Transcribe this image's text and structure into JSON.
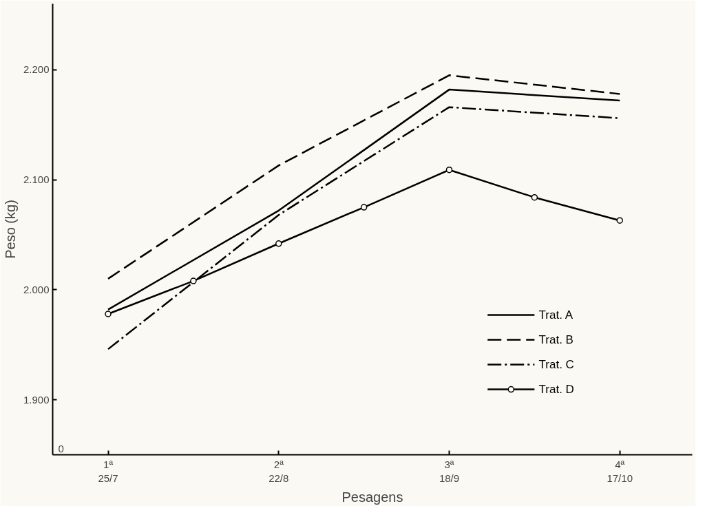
{
  "chart_data": {
    "type": "line",
    "xlabel": "Pesagens",
    "ylabel": "Peso (kg)",
    "categories": [
      "1ª\n25/7",
      null,
      "2ª\n22/8",
      null,
      "3ª\n18/9",
      null,
      "4ª\n17/10"
    ],
    "ylim": [
      1.85,
      2.26
    ],
    "yticks": [
      {
        "value": 1.9,
        "label": "1.900"
      },
      {
        "value": 2.0,
        "label": "2.000"
      },
      {
        "value": 2.1,
        "label": "2.100"
      },
      {
        "value": 2.2,
        "label": "2.200"
      }
    ],
    "annotations": [
      "0"
    ],
    "grid": false,
    "legend": "bottom right",
    "series": [
      {
        "name": "Trat. A",
        "color": "#000000",
        "line_style": "solid",
        "marker": "none",
        "values": [
          1.982,
          null,
          2.072,
          null,
          2.182,
          null,
          2.172
        ]
      },
      {
        "name": "Trat. B",
        "color": "#000000",
        "line_style": "dashed",
        "marker": "none",
        "values": [
          2.01,
          null,
          2.113,
          null,
          2.195,
          null,
          2.178
        ]
      },
      {
        "name": "Trat. C",
        "color": "#000000",
        "line_style": "dashdot",
        "marker": "none",
        "values": [
          1.946,
          null,
          2.068,
          null,
          2.166,
          null,
          2.156
        ]
      },
      {
        "name": "Trat. D",
        "color": "#000000",
        "line_style": "solid",
        "marker": "circle",
        "values": [
          1.978,
          2.008,
          2.042,
          2.075,
          2.109,
          2.084,
          2.063
        ]
      }
    ]
  }
}
